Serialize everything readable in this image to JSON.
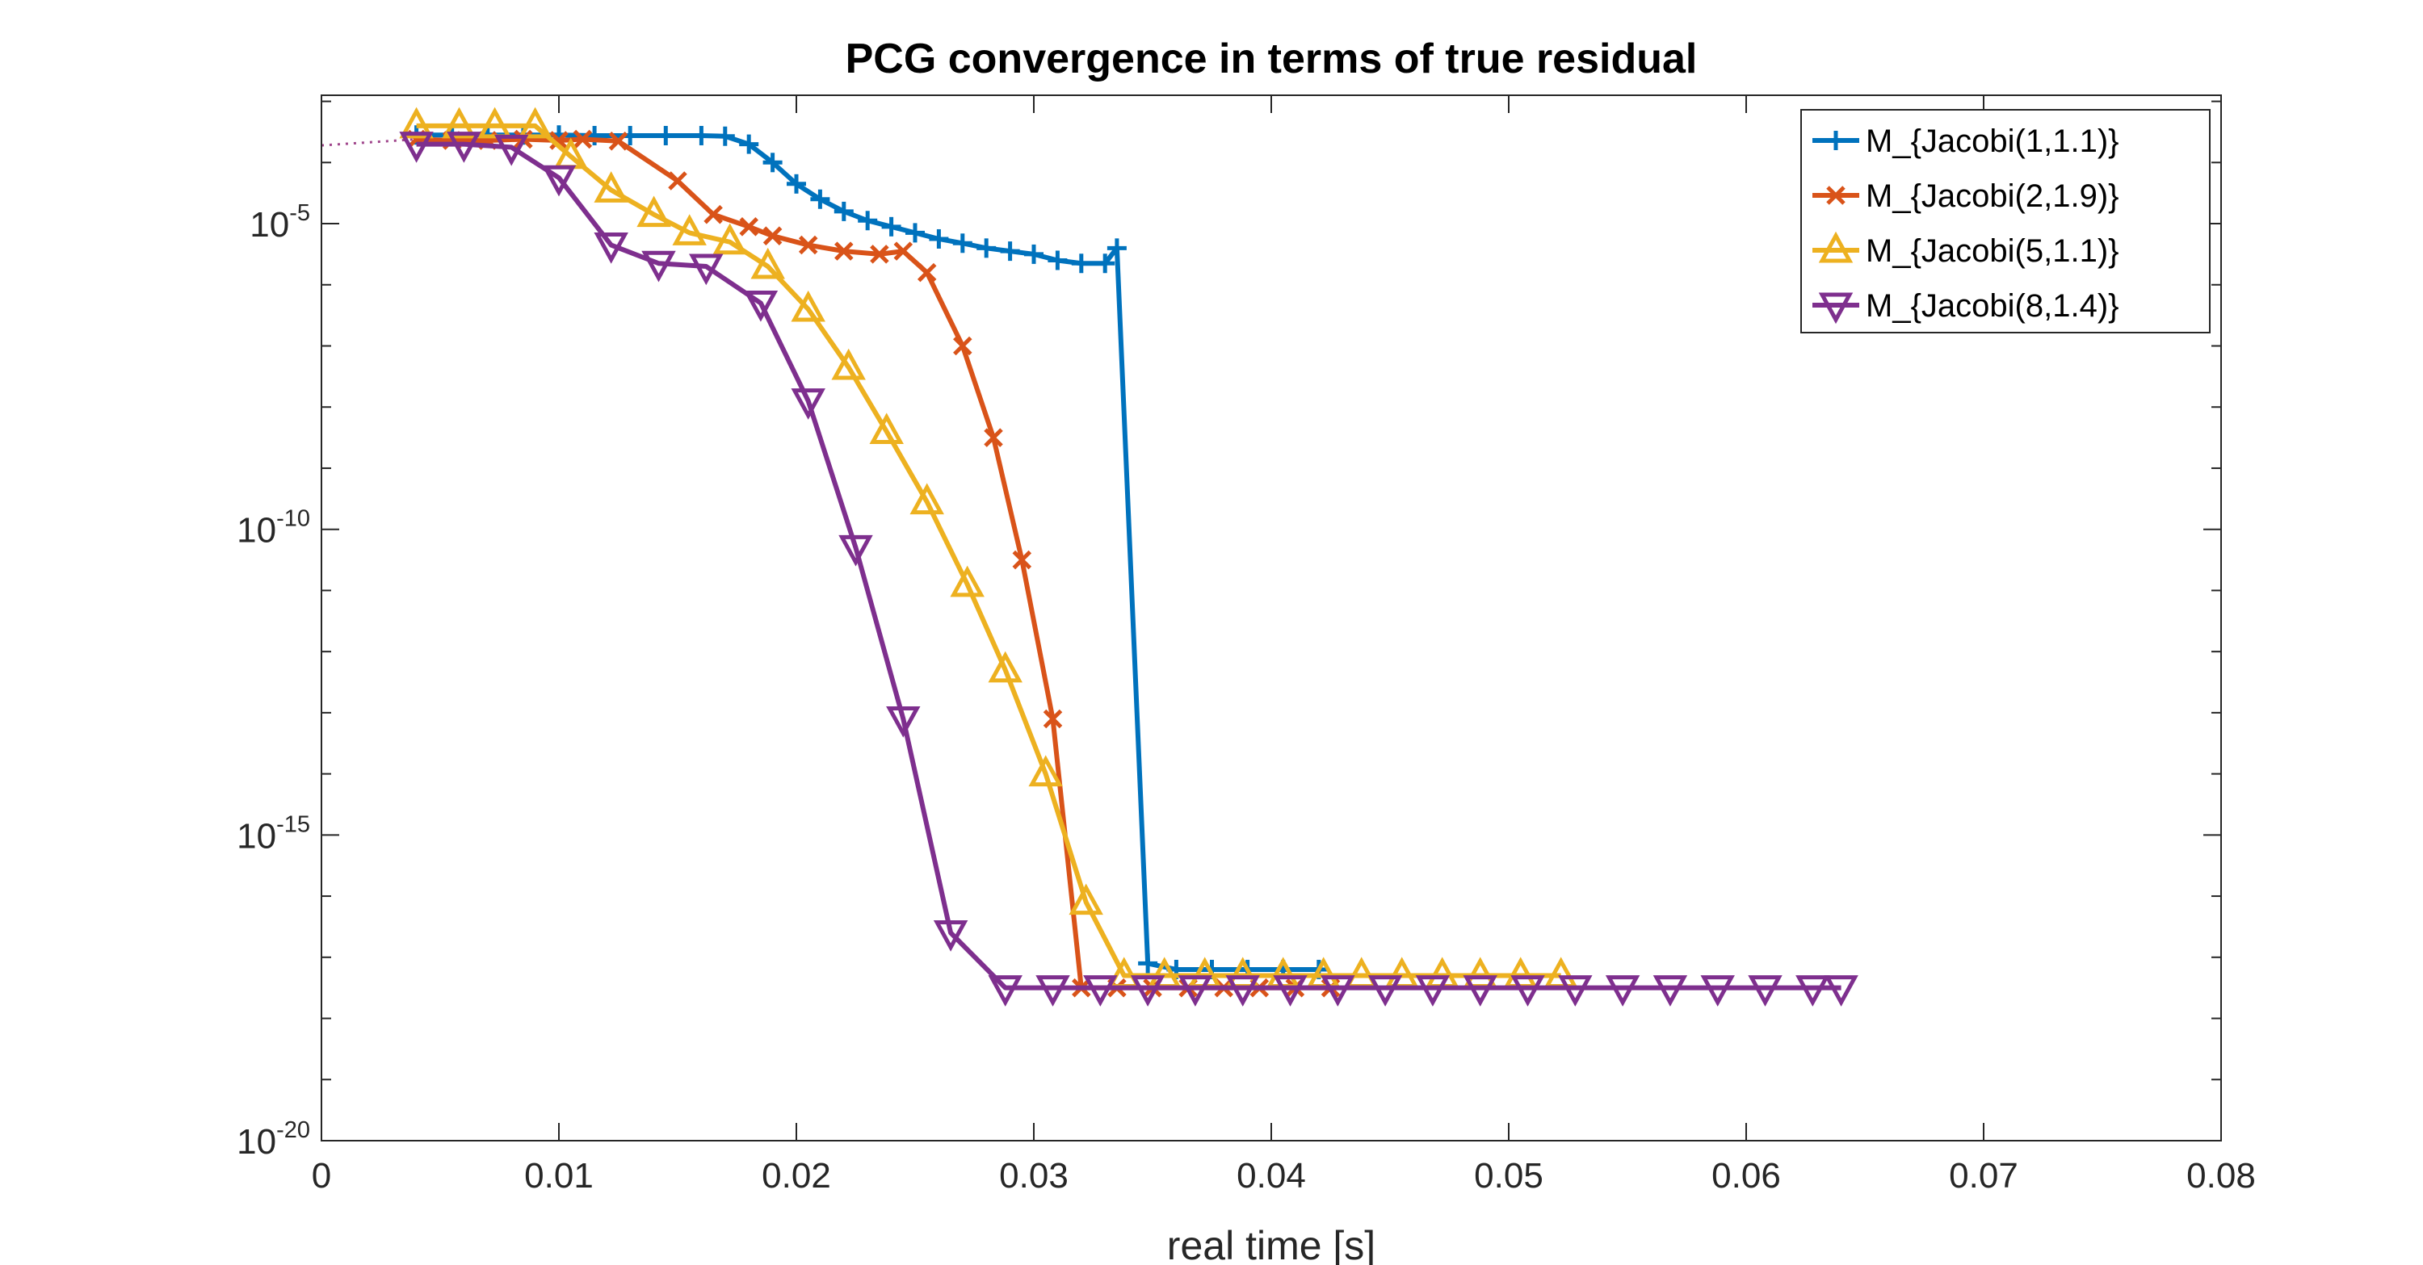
{
  "chart_data": {
    "type": "line",
    "title": "PCG convergence in terms of true residual",
    "xlabel": "real time [s]",
    "ylabel": "",
    "xlim": [
      0,
      0.08
    ],
    "ylim_exponent": [
      -20,
      -2.9
    ],
    "yscale": "log",
    "x_ticks": [
      "0",
      "0.01",
      "0.02",
      "0.03",
      "0.04",
      "0.05",
      "0.06",
      "0.07",
      "0.08"
    ],
    "x_tick_values": [
      0,
      0.01,
      0.02,
      0.03,
      0.04,
      0.05,
      0.06,
      0.07,
      0.08
    ],
    "y_ticks": [
      {
        "base": "10",
        "exp": "-5",
        "value_exp": -5
      },
      {
        "base": "10",
        "exp": "-10",
        "value_exp": -10
      },
      {
        "base": "10",
        "exp": "-15",
        "value_exp": -15
      },
      {
        "base": "10",
        "exp": "-20",
        "value_exp": -20
      }
    ],
    "grid": false,
    "legend_position": "top-right",
    "reference_line": {
      "x": [
        0,
        0.004
      ],
      "log10_y": [
        -3.72,
        -3.62
      ],
      "color": "#a0468c",
      "style": "dotted"
    },
    "series": [
      {
        "name": "M_{Jacobi(1,1.1)}",
        "color": "#0072bd",
        "marker": "plus",
        "x": [
          0.004,
          0.0055,
          0.007,
          0.0085,
          0.01,
          0.0115,
          0.013,
          0.0145,
          0.016,
          0.017,
          0.018,
          0.019,
          0.02,
          0.021,
          0.022,
          0.023,
          0.024,
          0.025,
          0.026,
          0.027,
          0.028,
          0.029,
          0.03,
          0.031,
          0.032,
          0.033,
          0.0335,
          0.0348,
          0.036,
          0.0375,
          0.039,
          0.0405,
          0.042
        ],
        "log10_y": [
          -3.55,
          -3.55,
          -3.55,
          -3.55,
          -3.55,
          -3.56,
          -3.56,
          -3.56,
          -3.56,
          -3.57,
          -3.7,
          -4.0,
          -4.35,
          -4.6,
          -4.8,
          -4.95,
          -5.05,
          -5.15,
          -5.25,
          -5.32,
          -5.4,
          -5.45,
          -5.5,
          -5.6,
          -5.65,
          -5.65,
          -5.4,
          -17.1,
          -17.2,
          -17.2,
          -17.2,
          -17.2,
          -17.2
        ]
      },
      {
        "name": "M_{Jacobi(2,1.9)}",
        "color": "#d95319",
        "marker": "x",
        "x": [
          0.004,
          0.0055,
          0.007,
          0.0085,
          0.01,
          0.011,
          0.0125,
          0.015,
          0.0165,
          0.018,
          0.019,
          0.0205,
          0.022,
          0.0235,
          0.0245,
          0.0255,
          0.027,
          0.0283,
          0.0295,
          0.0308,
          0.032,
          0.0335,
          0.035,
          0.0365,
          0.038,
          0.0395,
          0.041,
          0.0425
        ],
        "log10_y": [
          -3.62,
          -3.64,
          -3.64,
          -3.62,
          -3.64,
          -3.62,
          -3.65,
          -4.3,
          -4.85,
          -5.05,
          -5.2,
          -5.35,
          -5.45,
          -5.5,
          -5.45,
          -5.8,
          -7.0,
          -8.5,
          -10.5,
          -13.1,
          -17.5,
          -17.5,
          -17.5,
          -17.5,
          -17.5,
          -17.5,
          -17.5,
          -17.5
        ]
      },
      {
        "name": "M_{Jacobi(5,1.1)}",
        "color": "#edb120",
        "marker": "triangle-up",
        "x": [
          0.004,
          0.0058,
          0.0073,
          0.009,
          0.0105,
          0.0122,
          0.014,
          0.0155,
          0.0172,
          0.0188,
          0.0205,
          0.0222,
          0.0238,
          0.0255,
          0.0272,
          0.0288,
          0.0305,
          0.0322,
          0.0338,
          0.0355,
          0.0372,
          0.0388,
          0.0405,
          0.0422,
          0.0438,
          0.0455,
          0.0472,
          0.0488,
          0.0505,
          0.0522
        ],
        "log10_y": [
          -3.4,
          -3.4,
          -3.4,
          -3.4,
          -3.9,
          -4.45,
          -4.85,
          -5.15,
          -5.3,
          -5.7,
          -6.4,
          -7.35,
          -8.4,
          -9.55,
          -10.9,
          -12.3,
          -14.0,
          -16.1,
          -17.3,
          -17.3,
          -17.3,
          -17.3,
          -17.3,
          -17.3,
          -17.3,
          -17.3,
          -17.3,
          -17.3,
          -17.3,
          -17.3
        ]
      },
      {
        "name": "M_{Jacobi(8,1.4)}",
        "color": "#7e2f8e",
        "marker": "triangle-down",
        "x": [
          0.004,
          0.006,
          0.008,
          0.01,
          0.0122,
          0.0142,
          0.0162,
          0.0185,
          0.0205,
          0.0225,
          0.0245,
          0.0265,
          0.0288,
          0.0308,
          0.0328,
          0.0348,
          0.0368,
          0.0388,
          0.0408,
          0.0428,
          0.0448,
          0.0468,
          0.0488,
          0.0508,
          0.0528,
          0.0548,
          0.0568,
          0.0588,
          0.0608,
          0.0628,
          0.064
        ],
        "log10_y": [
          -3.7,
          -3.7,
          -3.75,
          -4.25,
          -5.35,
          -5.65,
          -5.7,
          -6.3,
          -7.9,
          -10.3,
          -13.1,
          -16.6,
          -17.5,
          -17.5,
          -17.5,
          -17.5,
          -17.5,
          -17.5,
          -17.5,
          -17.5,
          -17.5,
          -17.5,
          -17.5,
          -17.5,
          -17.5,
          -17.5,
          -17.5,
          -17.5,
          -17.5,
          -17.5,
          -17.5
        ]
      }
    ]
  }
}
